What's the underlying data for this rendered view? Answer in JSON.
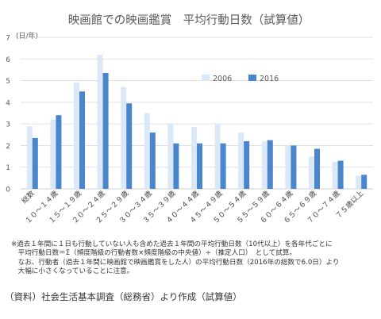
{
  "chart_data": {
    "type": "bar",
    "title": "映画館での映画鑑賞　平均行動日数（試算値）",
    "ylabel": "(日/年)",
    "ylim": [
      0,
      7
    ],
    "yticks": [
      0,
      1,
      2,
      3,
      4,
      5,
      6,
      7
    ],
    "grid": true,
    "legend_position": "top-right",
    "categories": [
      "総数",
      "１０～１４歳",
      "１５～１９歳",
      "２０～２４歳",
      "２５～２９歳",
      "３０～３４歳",
      "３５～３９歳",
      "４０～４４歳",
      "４５～４９歳",
      "５０～５４歳",
      "５５～５９歳",
      "６０～６４歳",
      "６５～６９歳",
      "７０～７４歳",
      "７５歳以上"
    ],
    "series": [
      {
        "name": "2006",
        "color": "#dbe8f7",
        "values": [
          2.9,
          3.2,
          4.9,
          6.2,
          4.7,
          3.5,
          3.0,
          2.85,
          3.0,
          2.6,
          2.2,
          2.0,
          1.5,
          1.25,
          0.6
        ]
      },
      {
        "name": "2016",
        "color": "#4a86cc",
        "values": [
          2.35,
          3.4,
          4.5,
          5.35,
          3.95,
          2.6,
          2.1,
          2.1,
          2.1,
          2.2,
          2.25,
          2.0,
          1.85,
          1.3,
          0.65
        ]
      }
    ]
  },
  "notes": [
    "※過去１年間に１日も行動していない人も含めた過去１年間の平均行動日数（10代以上）を各年代ごとに",
    "　平均行動日数＝Σ（頻度階級の行動者数×頻度階級の中央値）÷（推定人口）　として試算。",
    "　なお、行動者（過去１年間に映画館で映画鑑賞をした人）の平均行動日数（2016年の総数で6.0日）より",
    "　大幅に小さくなっていることに注意。"
  ],
  "source": "（資料）社会生活基本調査（総務省）より作成（試算値）"
}
